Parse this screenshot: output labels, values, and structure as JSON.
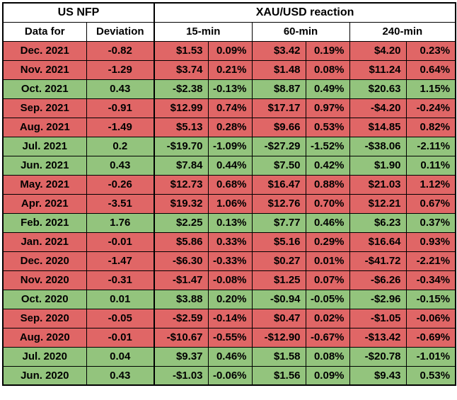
{
  "header": {
    "us_nfp": "US NFP",
    "xau_usd_reaction": "XAU/USD reaction",
    "data_for": "Data for",
    "deviation": "Deviation",
    "col_15": "15-min",
    "col_60": "60-min",
    "col_240": "240-min"
  },
  "colors": {
    "negative_row_bg": "#e06666",
    "positive_row_bg": "#93c47d",
    "header_bg": "#ffffff",
    "border": "#000000"
  },
  "chart_data": {
    "type": "table",
    "title": "US NFP deviation vs XAU/USD reaction",
    "column_groups": [
      "US NFP",
      "XAU/USD reaction"
    ],
    "columns": [
      "Data for",
      "Deviation",
      "15-min USD",
      "15-min %",
      "60-min USD",
      "60-min %",
      "240-min USD",
      "240-min %"
    ],
    "rows": [
      {
        "color": "red",
        "cells": [
          "Dec. 2021",
          "-0.82",
          "$1.53",
          "0.09%",
          "$3.42",
          "0.19%",
          "$4.20",
          "0.23%"
        ]
      },
      {
        "color": "red",
        "cells": [
          "Nov. 2021",
          "-1.29",
          "$3.74",
          "0.21%",
          "$1.48",
          "0.08%",
          "$11.24",
          "0.64%"
        ]
      },
      {
        "color": "green",
        "cells": [
          "Oct. 2021",
          "0.43",
          "-$2.38",
          "-0.13%",
          "$8.87",
          "0.49%",
          "$20.63",
          "1.15%"
        ]
      },
      {
        "color": "red",
        "cells": [
          "Sep. 2021",
          "-0.91",
          "$12.99",
          "0.74%",
          "$17.17",
          "0.97%",
          "-$4.20",
          "-0.24%"
        ]
      },
      {
        "color": "red",
        "cells": [
          "Aug. 2021",
          "-1.49",
          "$5.13",
          "0.28%",
          "$9.66",
          "0.53%",
          "$14.85",
          "0.82%"
        ]
      },
      {
        "color": "green",
        "cells": [
          "Jul. 2021",
          "0.2",
          "-$19.70",
          "-1.09%",
          "-$27.29",
          "-1.52%",
          "-$38.06",
          "-2.11%"
        ]
      },
      {
        "color": "green",
        "cells": [
          "Jun. 2021",
          "0.43",
          "$7.84",
          "0.44%",
          "$7.50",
          "0.42%",
          "$1.90",
          "0.11%"
        ]
      },
      {
        "color": "red",
        "cells": [
          "May. 2021",
          "-0.26",
          "$12.73",
          "0.68%",
          "$16.47",
          "0.88%",
          "$21.03",
          "1.12%"
        ]
      },
      {
        "color": "red",
        "cells": [
          "Apr. 2021",
          "-3.51",
          "$19.32",
          "1.06%",
          "$12.76",
          "0.70%",
          "$12.21",
          "0.67%"
        ]
      },
      {
        "color": "green",
        "cells": [
          "Feb. 2021",
          "1.76",
          "$2.25",
          "0.13%",
          "$7.77",
          "0.46%",
          "$6.23",
          "0.37%"
        ]
      },
      {
        "color": "red",
        "cells": [
          "Jan. 2021",
          "-0.01",
          "$5.86",
          "0.33%",
          "$5.16",
          "0.29%",
          "$16.64",
          "0.93%"
        ]
      },
      {
        "color": "red",
        "cells": [
          "Dec. 2020",
          "-1.47",
          "-$6.30",
          "-0.33%",
          "$0.27",
          "0.01%",
          "-$41.72",
          "-2.21%"
        ]
      },
      {
        "color": "red",
        "cells": [
          "Nov. 2020",
          "-0.31",
          "-$1.47",
          "-0.08%",
          "$1.25",
          "0.07%",
          "-$6.26",
          "-0.34%"
        ]
      },
      {
        "color": "green",
        "cells": [
          "Oct. 2020",
          "0.01",
          "$3.88",
          "0.20%",
          "-$0.94",
          "-0.05%",
          "-$2.96",
          "-0.15%"
        ]
      },
      {
        "color": "red",
        "cells": [
          "Sep. 2020",
          "-0.05",
          "-$2.59",
          "-0.14%",
          "$0.47",
          "0.02%",
          "-$1.05",
          "-0.06%"
        ]
      },
      {
        "color": "red",
        "cells": [
          "Aug. 2020",
          "-0.01",
          "-$10.67",
          "-0.55%",
          "-$12.90",
          "-0.67%",
          "-$13.42",
          "-0.69%"
        ]
      },
      {
        "color": "green",
        "cells": [
          "Jul. 2020",
          "0.04",
          "$9.37",
          "0.46%",
          "$1.58",
          "0.08%",
          "-$20.78",
          "-1.01%"
        ]
      },
      {
        "color": "green",
        "cells": [
          "Jun. 2020",
          "0.43",
          "-$1.03",
          "-0.06%",
          "$1.56",
          "0.09%",
          "$9.43",
          "0.53%"
        ]
      }
    ]
  }
}
